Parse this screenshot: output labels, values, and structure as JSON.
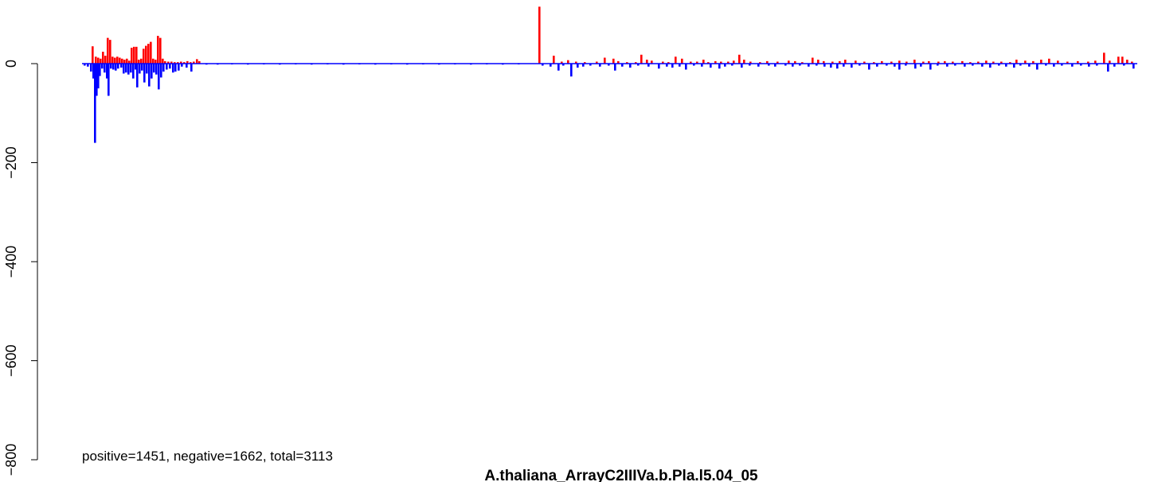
{
  "chart_data": {
    "type": "bar",
    "title": "A.thaliana_ArrayC2IIIVa.b.Pla.l5.04_05",
    "annotation": "positive=1451, negative=1662, total=3113",
    "ylabel": "",
    "xlabel": "",
    "ylim": [
      -800,
      100
    ],
    "yticks": [
      0,
      -200,
      -400,
      -600,
      -800
    ],
    "grid": false,
    "baseline_color": "#0000ff",
    "colors": {
      "positive": "#ff0000",
      "negative": "#0000ff"
    },
    "positive": [
      [
        115,
        35
      ],
      [
        119,
        14
      ],
      [
        122,
        12
      ],
      [
        125,
        10
      ],
      [
        128,
        24
      ],
      [
        131,
        16
      ],
      [
        134,
        52
      ],
      [
        137,
        48
      ],
      [
        140,
        14
      ],
      [
        143,
        12
      ],
      [
        146,
        14
      ],
      [
        149,
        12
      ],
      [
        152,
        10
      ],
      [
        155,
        8
      ],
      [
        158,
        10
      ],
      [
        161,
        6
      ],
      [
        164,
        32
      ],
      [
        167,
        34
      ],
      [
        170,
        34
      ],
      [
        173,
        8
      ],
      [
        176,
        10
      ],
      [
        179,
        30
      ],
      [
        182,
        36
      ],
      [
        185,
        40
      ],
      [
        188,
        44
      ],
      [
        191,
        10
      ],
      [
        194,
        8
      ],
      [
        197,
        56
      ],
      [
        200,
        52
      ],
      [
        203,
        10
      ],
      [
        206,
        5
      ],
      [
        210,
        4
      ],
      [
        214,
        4
      ],
      [
        218,
        3
      ],
      [
        222,
        3
      ],
      [
        226,
        4
      ],
      [
        230,
        3
      ],
      [
        234,
        5
      ],
      [
        238,
        3
      ],
      [
        242,
        4
      ],
      [
        246,
        9
      ],
      [
        249,
        5
      ],
      [
        676,
        115
      ],
      [
        694,
        16
      ],
      [
        704,
        4
      ],
      [
        712,
        7
      ],
      [
        722,
        4
      ],
      [
        733,
        3
      ],
      [
        748,
        4
      ],
      [
        758,
        12
      ],
      [
        769,
        10
      ],
      [
        775,
        5
      ],
      [
        786,
        3
      ],
      [
        797,
        3
      ],
      [
        804,
        18
      ],
      [
        811,
        8
      ],
      [
        817,
        6
      ],
      [
        831,
        4
      ],
      [
        838,
        3
      ],
      [
        847,
        14
      ],
      [
        855,
        10
      ],
      [
        866,
        4
      ],
      [
        874,
        4
      ],
      [
        882,
        8
      ],
      [
        888,
        3
      ],
      [
        897,
        5
      ],
      [
        904,
        4
      ],
      [
        913,
        4
      ],
      [
        920,
        6
      ],
      [
        927,
        18
      ],
      [
        933,
        8
      ],
      [
        941,
        4
      ],
      [
        953,
        3
      ],
      [
        962,
        5
      ],
      [
        975,
        4
      ],
      [
        989,
        6
      ],
      [
        997,
        5
      ],
      [
        1006,
        3
      ],
      [
        1019,
        12
      ],
      [
        1026,
        8
      ],
      [
        1033,
        5
      ],
      [
        1044,
        4
      ],
      [
        1053,
        5
      ],
      [
        1060,
        8
      ],
      [
        1073,
        6
      ],
      [
        1084,
        4
      ],
      [
        1096,
        3
      ],
      [
        1106,
        5
      ],
      [
        1118,
        4
      ],
      [
        1128,
        6
      ],
      [
        1137,
        4
      ],
      [
        1147,
        8
      ],
      [
        1158,
        4
      ],
      [
        1165,
        5
      ],
      [
        1177,
        4
      ],
      [
        1185,
        5
      ],
      [
        1195,
        4
      ],
      [
        1207,
        5
      ],
      [
        1217,
        3
      ],
      [
        1227,
        4
      ],
      [
        1237,
        6
      ],
      [
        1246,
        4
      ],
      [
        1256,
        4
      ],
      [
        1267,
        3
      ],
      [
        1275,
        8
      ],
      [
        1286,
        6
      ],
      [
        1296,
        5
      ],
      [
        1306,
        8
      ],
      [
        1316,
        10
      ],
      [
        1327,
        6
      ],
      [
        1339,
        4
      ],
      [
        1352,
        5
      ],
      [
        1365,
        4
      ],
      [
        1374,
        6
      ],
      [
        1385,
        22
      ],
      [
        1392,
        6
      ],
      [
        1403,
        14
      ],
      [
        1408,
        14
      ],
      [
        1414,
        8
      ],
      [
        1420,
        4
      ]
    ],
    "negative": [
      [
        105,
        -4
      ],
      [
        109,
        -6
      ],
      [
        113,
        -16
      ],
      [
        116,
        -30
      ],
      [
        118,
        -160
      ],
      [
        120,
        -65
      ],
      [
        122,
        -50
      ],
      [
        124,
        -25
      ],
      [
        127,
        -10
      ],
      [
        130,
        -18
      ],
      [
        133,
        -30
      ],
      [
        135,
        -65
      ],
      [
        138,
        -10
      ],
      [
        141,
        -12
      ],
      [
        144,
        -14
      ],
      [
        147,
        -10
      ],
      [
        151,
        -8
      ],
      [
        154,
        -20
      ],
      [
        157,
        -18
      ],
      [
        160,
        -22
      ],
      [
        163,
        -18
      ],
      [
        166,
        -30
      ],
      [
        169,
        -12
      ],
      [
        171,
        -48
      ],
      [
        174,
        -20
      ],
      [
        177,
        -14
      ],
      [
        180,
        -38
      ],
      [
        183,
        -20
      ],
      [
        186,
        -46
      ],
      [
        189,
        -30
      ],
      [
        192,
        -18
      ],
      [
        195,
        -22
      ],
      [
        198,
        -52
      ],
      [
        201,
        -28
      ],
      [
        204,
        -16
      ],
      [
        208,
        -12
      ],
      [
        212,
        -10
      ],
      [
        216,
        -18
      ],
      [
        219,
        -16
      ],
      [
        223,
        -14
      ],
      [
        227,
        -6
      ],
      [
        233,
        -8
      ],
      [
        239,
        -16
      ],
      [
        258,
        -2
      ],
      [
        272,
        -2
      ],
      [
        290,
        -1
      ],
      [
        310,
        -2
      ],
      [
        330,
        -1
      ],
      [
        350,
        -2
      ],
      [
        370,
        -1
      ],
      [
        390,
        -2
      ],
      [
        410,
        -1
      ],
      [
        430,
        -2
      ],
      [
        450,
        -1
      ],
      [
        470,
        -2
      ],
      [
        490,
        -1
      ],
      [
        510,
        -2
      ],
      [
        530,
        -1
      ],
      [
        550,
        -2
      ],
      [
        570,
        -1
      ],
      [
        590,
        -2
      ],
      [
        610,
        -1
      ],
      [
        630,
        -2
      ],
      [
        650,
        -1
      ],
      [
        680,
        -4
      ],
      [
        690,
        -6
      ],
      [
        700,
        -14
      ],
      [
        706,
        -4
      ],
      [
        716,
        -26
      ],
      [
        724,
        -8
      ],
      [
        731,
        -6
      ],
      [
        740,
        -4
      ],
      [
        752,
        -6
      ],
      [
        763,
        -4
      ],
      [
        771,
        -14
      ],
      [
        780,
        -6
      ],
      [
        790,
        -8
      ],
      [
        800,
        -4
      ],
      [
        813,
        -6
      ],
      [
        826,
        -10
      ],
      [
        836,
        -6
      ],
      [
        843,
        -8
      ],
      [
        852,
        -6
      ],
      [
        860,
        -12
      ],
      [
        870,
        -4
      ],
      [
        880,
        -6
      ],
      [
        891,
        -8
      ],
      [
        902,
        -10
      ],
      [
        909,
        -6
      ],
      [
        918,
        -4
      ],
      [
        930,
        -8
      ],
      [
        940,
        -4
      ],
      [
        951,
        -6
      ],
      [
        964,
        -4
      ],
      [
        972,
        -6
      ],
      [
        985,
        -4
      ],
      [
        994,
        -6
      ],
      [
        1003,
        -4
      ],
      [
        1014,
        -6
      ],
      [
        1024,
        -4
      ],
      [
        1034,
        -6
      ],
      [
        1042,
        -8
      ],
      [
        1050,
        -10
      ],
      [
        1058,
        -6
      ],
      [
        1068,
        -8
      ],
      [
        1078,
        -4
      ],
      [
        1090,
        -12
      ],
      [
        1100,
        -6
      ],
      [
        1112,
        -4
      ],
      [
        1122,
        -6
      ],
      [
        1128,
        -12
      ],
      [
        1136,
        -4
      ],
      [
        1148,
        -10
      ],
      [
        1155,
        -6
      ],
      [
        1167,
        -12
      ],
      [
        1176,
        -4
      ],
      [
        1188,
        -6
      ],
      [
        1198,
        -4
      ],
      [
        1210,
        -6
      ],
      [
        1220,
        -4
      ],
      [
        1232,
        -6
      ],
      [
        1242,
        -8
      ],
      [
        1253,
        -4
      ],
      [
        1262,
        -6
      ],
      [
        1272,
        -8
      ],
      [
        1280,
        -4
      ],
      [
        1291,
        -6
      ],
      [
        1301,
        -12
      ],
      [
        1312,
        -4
      ],
      [
        1322,
        -6
      ],
      [
        1332,
        -4
      ],
      [
        1345,
        -6
      ],
      [
        1356,
        -4
      ],
      [
        1366,
        -6
      ],
      [
        1376,
        -4
      ],
      [
        1390,
        -16
      ],
      [
        1398,
        -6
      ],
      [
        1410,
        -4
      ],
      [
        1422,
        -10
      ]
    ]
  }
}
